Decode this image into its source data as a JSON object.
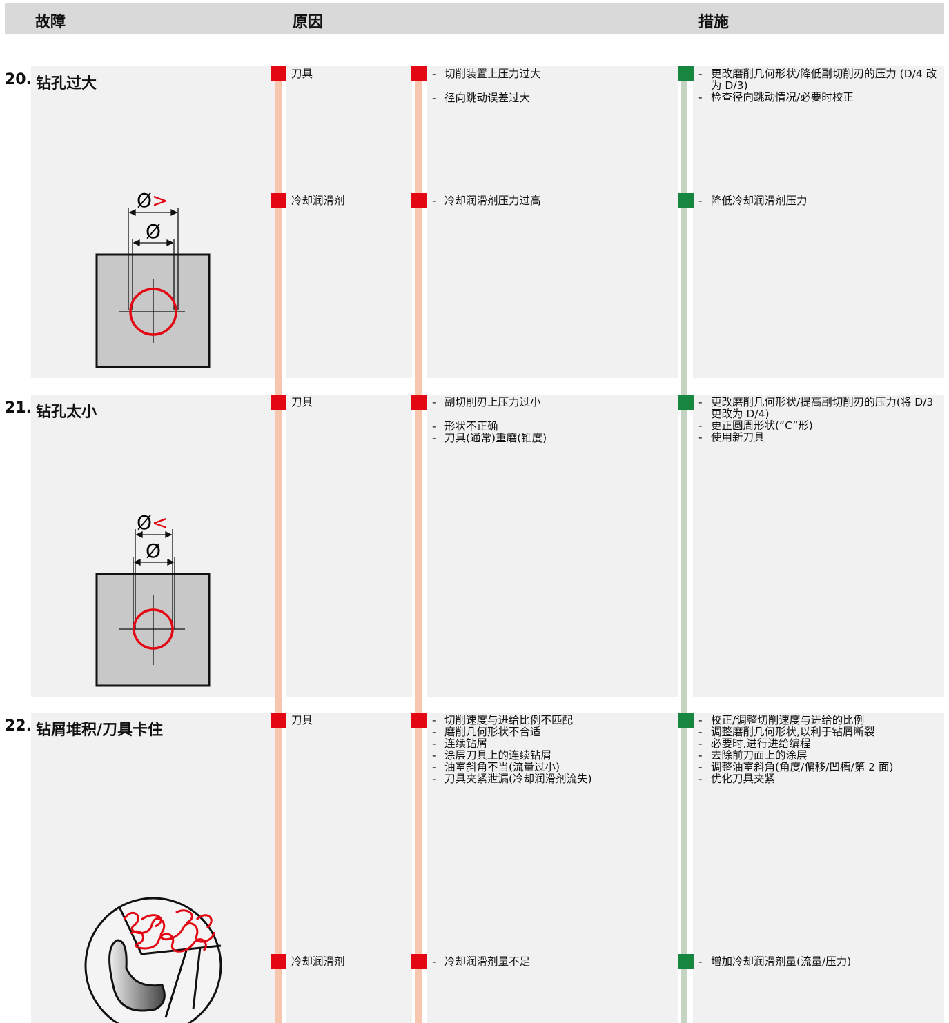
{
  "header": {
    "fault": "故障",
    "cause": "原因",
    "measure": "措施"
  },
  "sections": [
    {
      "number": "20.",
      "title": "钻孔过大",
      "diagram": {
        "outer_symbol": "Ø",
        "outer_sign": ">",
        "inner_symbol": "Ø"
      },
      "rows": [
        {
          "category": "刀具",
          "causes": [
            "切削装置上压力过大",
            "径向跳动误差过大"
          ],
          "measures": [
            "更改磨削几何形状/降低副切削刃的压力 (D/4 改为 D/3)",
            "检查径向跳动情况/必要时校正"
          ]
        },
        {
          "category": "冷却润滑剂",
          "causes": [
            "冷却润滑剂压力过高"
          ],
          "measures": [
            "降低冷却润滑剂压力"
          ]
        }
      ]
    },
    {
      "number": "21.",
      "title": "钻孔太小",
      "diagram": {
        "outer_symbol": "Ø",
        "outer_sign": "<",
        "inner_symbol": "Ø"
      },
      "rows": [
        {
          "category": "刀具",
          "causes": [
            "副切削刃上压力过小",
            "形状不正确",
            "刀具(通常)重磨(锥度)"
          ],
          "measures": [
            "更改磨削几何形状/提高副切削刃的压力(将 D/3 更改为 D/4)",
            "更正圆周形状(“C”形)",
            "使用新刀具"
          ]
        }
      ]
    },
    {
      "number": "22.",
      "title": "钻屑堆积/刀具卡住",
      "rows": [
        {
          "category": "刀具",
          "causes": [
            "切削速度与进给比例不匹配",
            "磨削几何形状不合适",
            "连续钻屑",
            "涂层刀具上的连续钻屑",
            "油室斜角不当(流量过小)",
            "刀具夹紧泄漏(冷却润滑剂流失)"
          ],
          "measures": [
            "校正/调整切削速度与进给的比例",
            "调整磨削几何形状,以利于钻屑断裂",
            "必要时,进行进给编程",
            "去除前刀面上的涂层",
            "调整油室斜角(角度/偏移/凹槽/第 2 面)",
            "优化刀具夹紧"
          ]
        },
        {
          "category": "冷却润滑剂",
          "causes": [
            "冷却润滑剂量不足"
          ],
          "measures": [
            "增加冷却润滑剂量(流量/压力)"
          ]
        }
      ]
    }
  ]
}
